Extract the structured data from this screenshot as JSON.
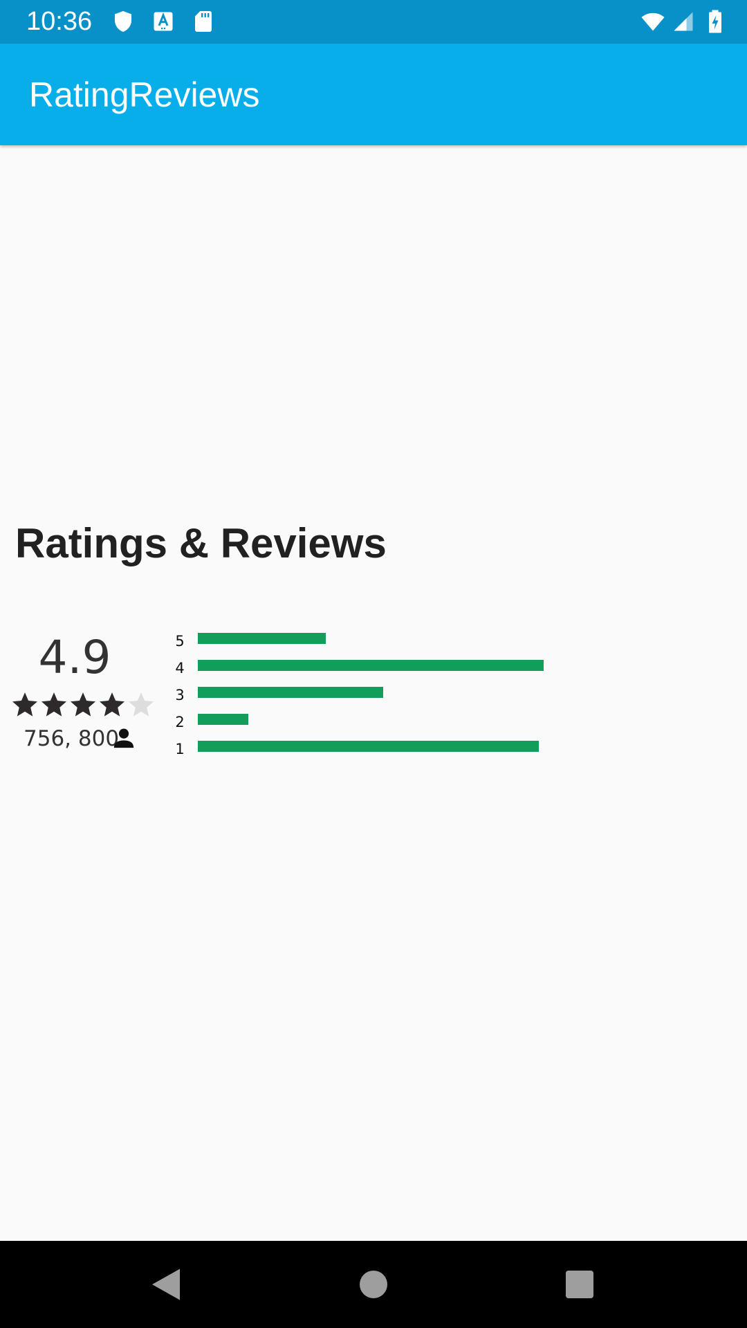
{
  "status_bar": {
    "time": "10:36",
    "icons": [
      "shield-icon",
      "text-a-icon",
      "sd-card-icon",
      "wifi-icon",
      "cell-signal-icon",
      "battery-charging-icon"
    ],
    "background_color": "#0891c9"
  },
  "app_bar": {
    "title": "RatingReviews",
    "background_color": "#07aeea"
  },
  "main": {
    "section_title": "Ratings & Reviews",
    "rating": {
      "value": "4.9",
      "stars_filled": 4,
      "stars_total": 5,
      "reviews_count": "756, 800",
      "star_filled_color": "#2e2a2c",
      "star_empty_color": "#dddddd"
    },
    "distribution": {
      "bar_color": "#129d5b",
      "rows": [
        {
          "label": "5",
          "fraction": 0.37
        },
        {
          "label": "4",
          "fraction": 1.0
        },
        {
          "label": "3",
          "fraction": 0.535
        },
        {
          "label": "2",
          "fraction": 0.145
        },
        {
          "label": "1",
          "fraction": 0.985
        }
      ]
    }
  },
  "nav_bar": {
    "icons": [
      "back-icon",
      "home-icon",
      "recents-icon"
    ]
  }
}
